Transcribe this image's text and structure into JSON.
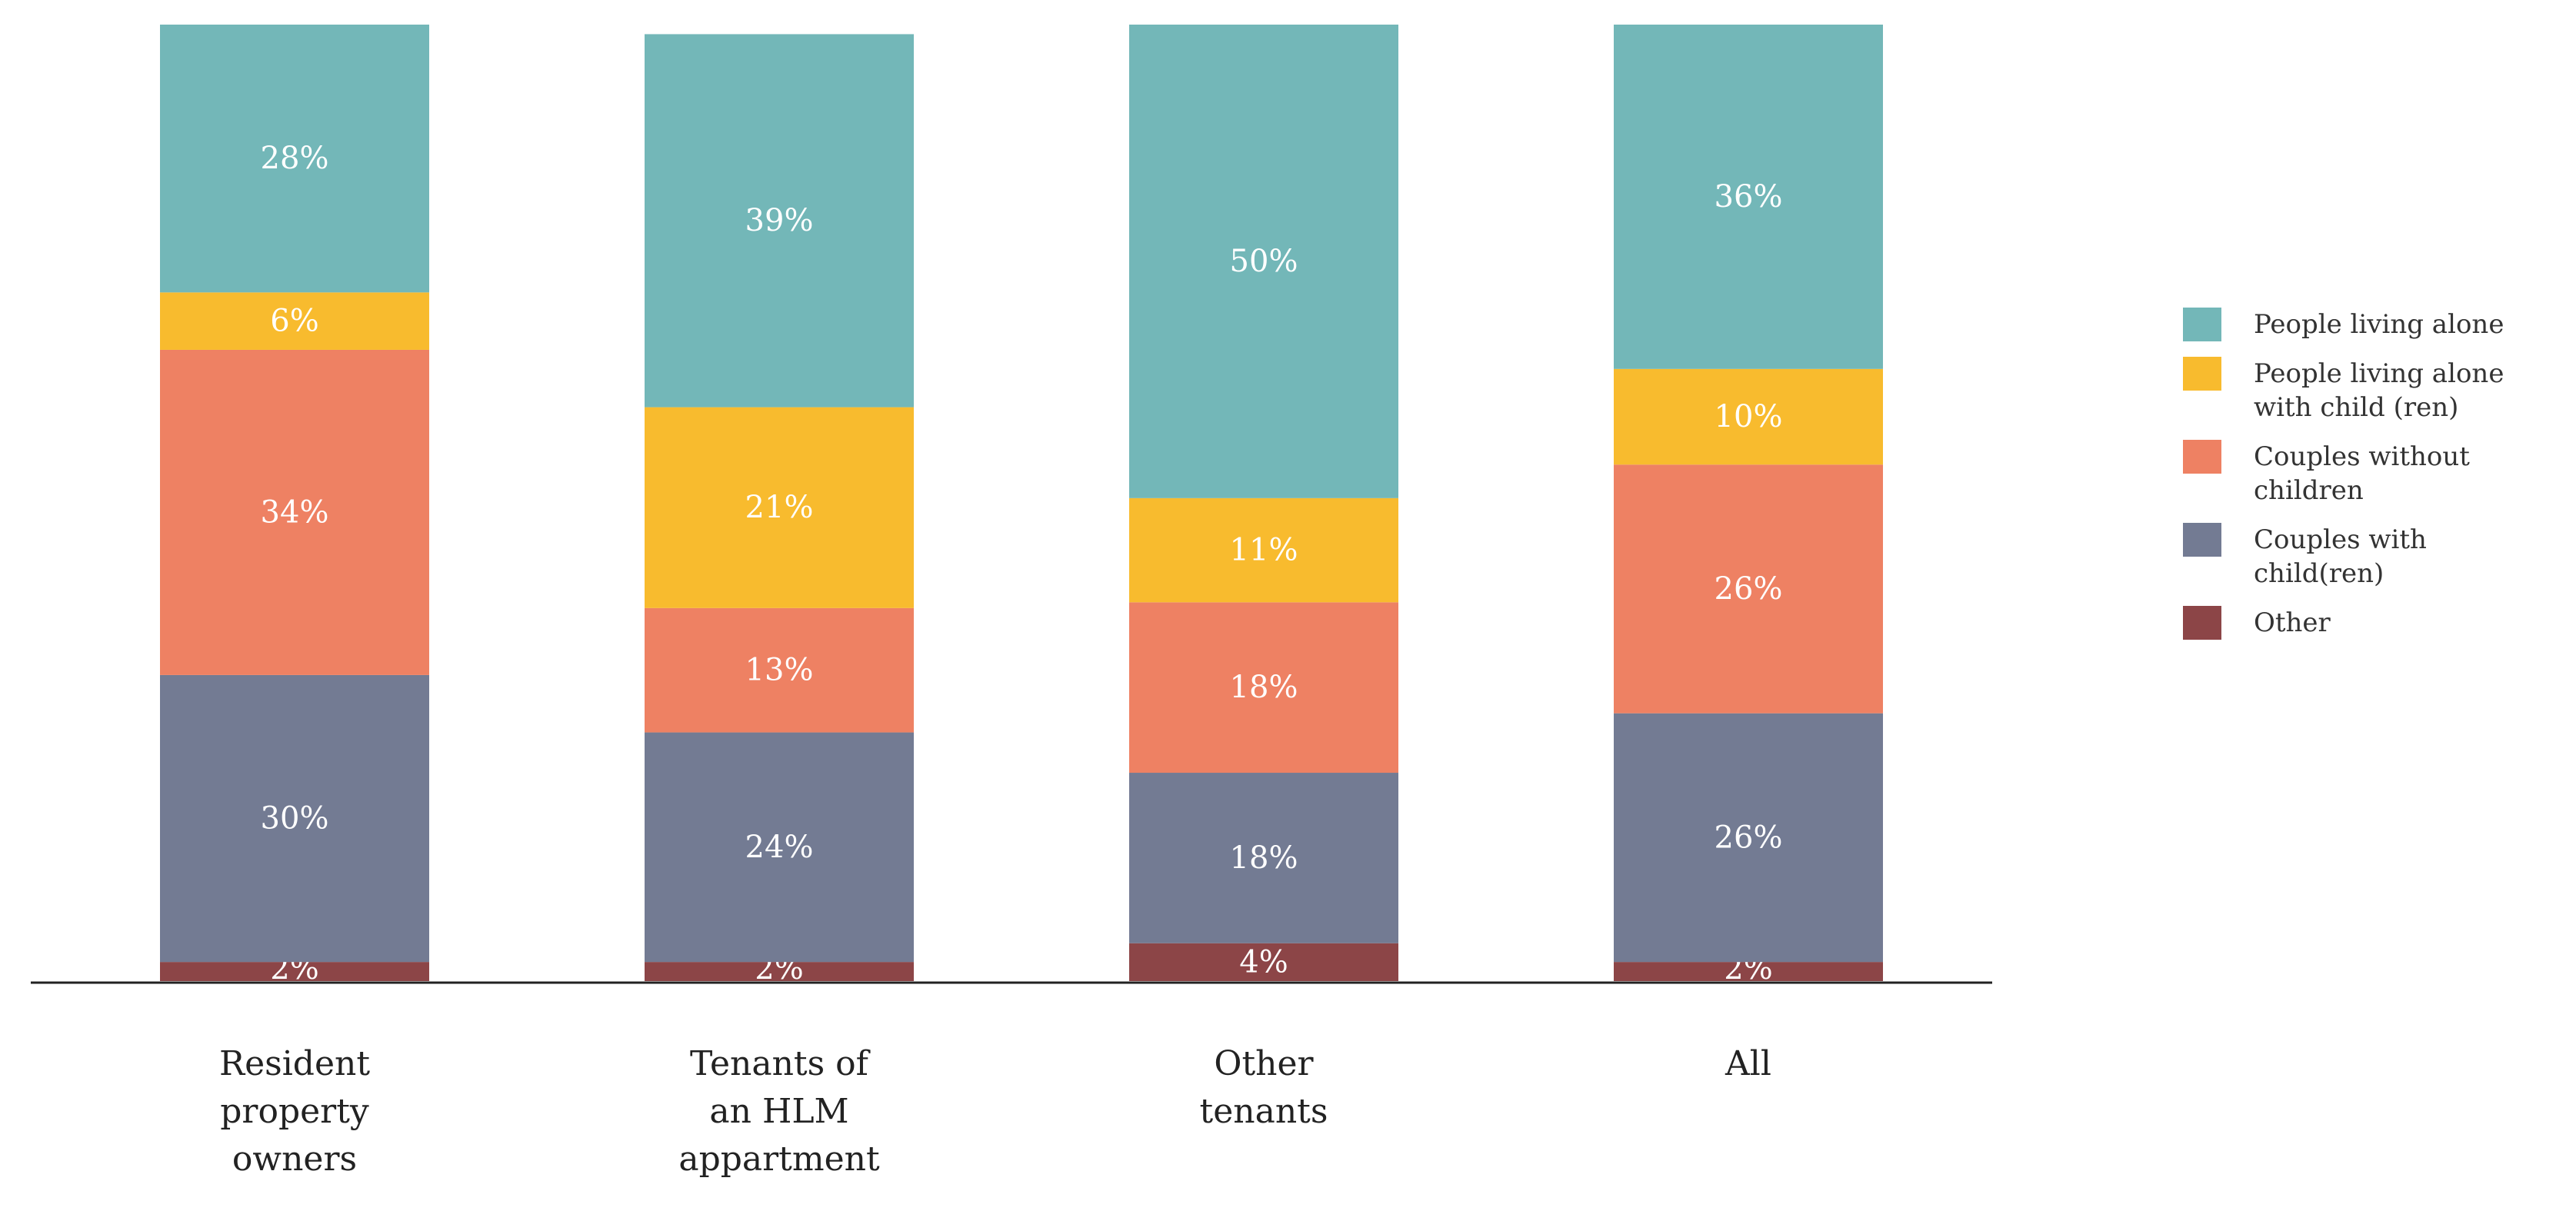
{
  "chart_data": {
    "type": "bar",
    "stacked": true,
    "categories": [
      "Resident\nproperty\nowners",
      "Tenants of\nan HLM\nappartment",
      "Other\ntenants",
      "All"
    ],
    "series": [
      {
        "name": "Other",
        "color": "#8c4547",
        "values": [
          2,
          2,
          4,
          2
        ],
        "labels": [
          "2%",
          "2%",
          "4%",
          "2%"
        ]
      },
      {
        "name": "Couples with\nchild(ren)",
        "color": "#737b93",
        "values": [
          30,
          24,
          18,
          26
        ],
        "labels": [
          "30%",
          "24%",
          "18%",
          "26%"
        ]
      },
      {
        "name": "Couples without\nchildren",
        "color": "#ee8163",
        "values": [
          34,
          13,
          18,
          26
        ],
        "labels": [
          "34%",
          "13%",
          "18%",
          "26%"
        ]
      },
      {
        "name": "People living alone\nwith child (ren)",
        "color": "#f8bb2e",
        "values": [
          6,
          21,
          11,
          10
        ],
        "labels": [
          "6%",
          "21%",
          "11%",
          "10%"
        ]
      },
      {
        "name": "People living alone",
        "color": "#73b7b8",
        "values": [
          28,
          39,
          50,
          36
        ],
        "labels": [
          "28%",
          "39%",
          "50%",
          "36%"
        ]
      }
    ],
    "legend_order": [
      "People living alone",
      "People living alone\nwith child (ren)",
      "Couples without\nchildren",
      "Couples with\nchild(ren)",
      "Other"
    ],
    "ylim": [
      0,
      100
    ],
    "title": "",
    "xlabel": "",
    "ylabel": "",
    "grid": false,
    "legend_position": "right"
  }
}
